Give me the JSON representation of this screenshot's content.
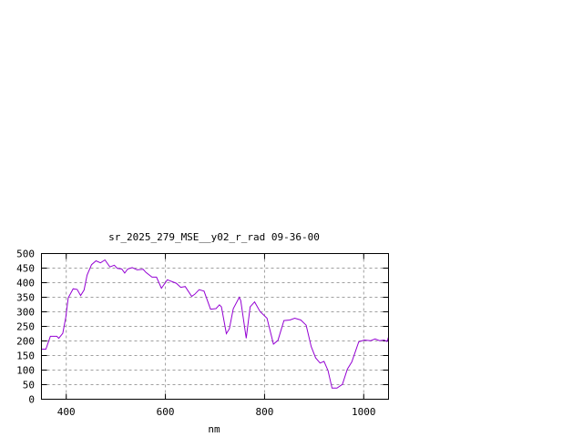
{
  "chart_data": {
    "type": "line",
    "title": "sr_2025_279_MSE__y02_r_rad 09-36-00",
    "xlabel": "nm",
    "ylabel": "",
    "xlim": [
      350,
      1050
    ],
    "ylim": [
      0,
      500
    ],
    "xticks": [
      400,
      600,
      800,
      1000
    ],
    "yticks": [
      0,
      50,
      100,
      150,
      200,
      250,
      300,
      350,
      400,
      450,
      500
    ],
    "grid": true,
    "line_color": "#9400D3",
    "series": [
      {
        "x": [
          350,
          359,
          368,
          381,
          385,
          393,
          399,
          404,
          414,
          422,
          429,
          436,
          442,
          451,
          460,
          469,
          478,
          488,
          497,
          503,
          512,
          518,
          524,
          533,
          543,
          555,
          561,
          573,
          582,
          592,
          604,
          616,
          622,
          631,
          640,
          653,
          659,
          668,
          678,
          691,
          702,
          709,
          713,
          723,
          729,
          737,
          749,
          752,
          763,
          771,
          780,
          791,
          805,
          818,
          827,
          839,
          851,
          861,
          873,
          884,
          894,
          903,
          912,
          920,
          928,
          936,
          946,
          957,
          967,
          976,
          990,
          1001,
          1014,
          1023,
          1032,
          1041,
          1047,
          1050
        ],
        "y": [
          172,
          172,
          216,
          216,
          209,
          226,
          281,
          348,
          379,
          377,
          356,
          375,
          426,
          462,
          475,
          468,
          478,
          454,
          460,
          449,
          447,
          433,
          447,
          452,
          444,
          446,
          435,
          419,
          419,
          381,
          410,
          402,
          398,
          384,
          387,
          353,
          360,
          376,
          371,
          309,
          311,
          324,
          317,
          225,
          242,
          311,
          350,
          338,
          209,
          317,
          334,
          301,
          278,
          189,
          202,
          270,
          272,
          278,
          272,
          254,
          181,
          142,
          124,
          130,
          98,
          38,
          38,
          51,
          103,
          128,
          197,
          203,
          201,
          207,
          201,
          203,
          198,
          213
        ]
      }
    ]
  }
}
